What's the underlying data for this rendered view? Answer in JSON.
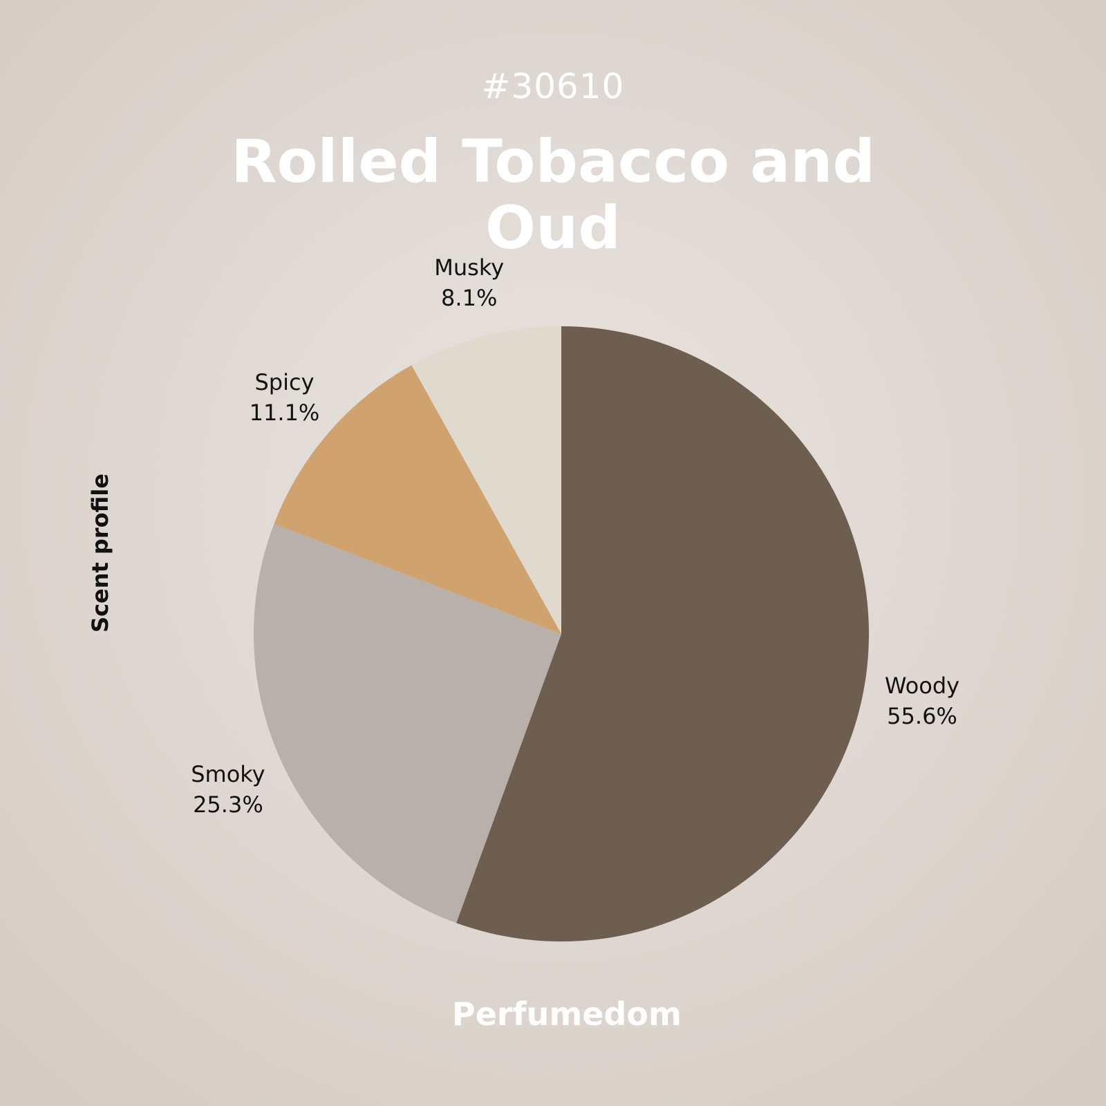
{
  "header": {
    "id_label": "#30610",
    "title": "Rolled Tobacco and Oud"
  },
  "side_label": "Scent profile",
  "footer": {
    "brand": "Perfumedom"
  },
  "chart_data": {
    "type": "pie",
    "title": "Rolled Tobacco and Oud",
    "categories": [
      "Woody",
      "Smoky",
      "Spicy",
      "Musky"
    ],
    "values": [
      55.6,
      25.3,
      11.1,
      8.1
    ],
    "labels": [
      "55.6%",
      "25.3%",
      "11.1%",
      "8.1%"
    ],
    "colors": [
      "#6e5e4f",
      "#b8b0aa",
      "#cfa26e",
      "#dfd9ce"
    ],
    "start_angle": "12 o'clock",
    "direction": "clockwise",
    "legend": "none"
  }
}
